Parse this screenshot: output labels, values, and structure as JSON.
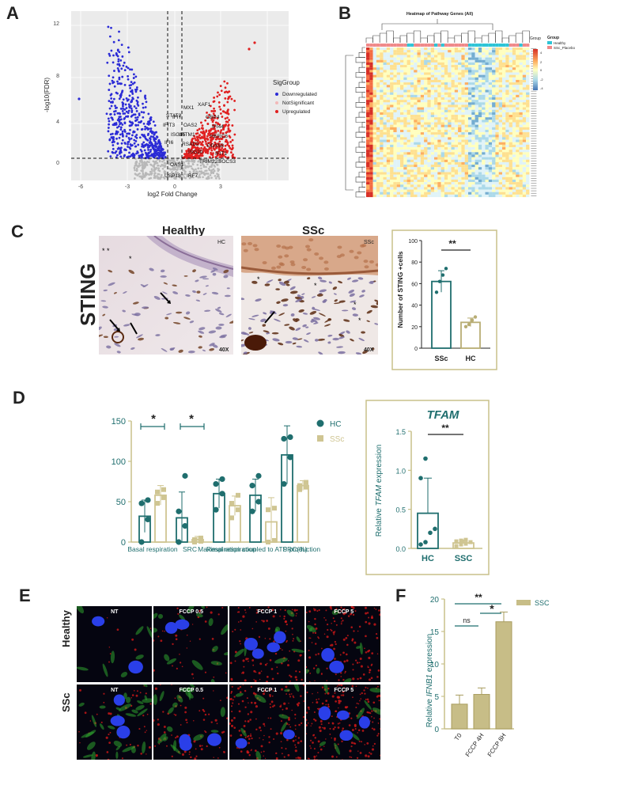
{
  "panels": {
    "A": "A",
    "B": "B",
    "C": "C",
    "D": "D",
    "E": "E",
    "F": "F"
  },
  "volcano": {
    "xlabel": "log2 Fold Change",
    "ylabel": "-log10(FDR)",
    "xticks": [
      "-6",
      "-3",
      "0",
      "3"
    ],
    "yticks": [
      "0",
      "4",
      "8",
      "12"
    ],
    "legend_title": "SigGroup",
    "legend": [
      "Downregulated",
      "NotSignificant",
      "Upregulated"
    ],
    "colors": {
      "down": "#2b2bd6",
      "ns": "#b8b8b8",
      "up": "#e02020"
    },
    "genes": [
      "STAT2",
      "IFIT",
      "IFIT3",
      "ISG15",
      "IFI6",
      "MX1",
      "OAS2",
      "IFITM1",
      "RSAD2",
      "ISG20",
      "OAS1",
      "USP18",
      "IRF7",
      "XAF1",
      "GBP4",
      "IFI44",
      "HERC6",
      "DDX58",
      "IFIT1",
      "SOCS3",
      "TRIM22"
    ]
  },
  "heatmap": {
    "title": "Heatmap of Pathway Genes (All)",
    "group_label": "Group",
    "legend": [
      "Healthy",
      "SSc_Placebo"
    ],
    "legend_colors": [
      "#2ec4d6",
      "#f08a8a"
    ],
    "scale_ticks": [
      "4",
      "2",
      "0",
      "-2",
      "-4"
    ]
  },
  "panel_c": {
    "row_label": "STING",
    "col_healthy": "Healthy",
    "col_ssc": "SSc",
    "tag_hc": "HC",
    "tag_ssc": "SSc",
    "mag": "40X",
    "bar_chart": {
      "ylabel": "Number of STING +cells",
      "yticks": [
        "0",
        "20",
        "40",
        "60",
        "80",
        "100"
      ],
      "sig": "**"
    }
  },
  "panel_d": {
    "left_legend": [
      "HC",
      "SSc"
    ],
    "sig1": "*",
    "sig2": "*",
    "right_title": "TFAM",
    "right_ylabel_pre": "Relative ",
    "right_ylabel_it": "TFAM",
    "right_ylabel_post": " expression",
    "right_sig": "**",
    "right_yticks": [
      "0.0",
      "0.5",
      "1.0",
      "1.5"
    ]
  },
  "panel_e": {
    "row_healthy": "Healthy",
    "row_ssc": "SSc",
    "cols": [
      "NT",
      "FCCP 0.5",
      "FCCP 1",
      "FCCP 5"
    ]
  },
  "panel_f": {
    "ylabel_pre": "Relative ",
    "ylabel_it": "IFNB1",
    "ylabel_post": " expression",
    "legend": "SSC",
    "sig_top": "**",
    "sig_ns": "ns",
    "sig_star": "*",
    "yticks": [
      "0",
      "5",
      "10",
      "15",
      "20"
    ]
  },
  "chart_data": [
    {
      "type": "bar",
      "panel": "C",
      "categories": [
        "SSc",
        "HC"
      ],
      "values": [
        62,
        24
      ],
      "errors": [
        10,
        4
      ],
      "points": [
        [
          52,
          62,
          68,
          74
        ],
        [
          20,
          22,
          26,
          29
        ]
      ],
      "ylabel": "Number of STING +cells",
      "ylim": [
        0,
        100
      ],
      "colors": [
        "#1f6e6e",
        "#b8ad74"
      ]
    },
    {
      "type": "bar",
      "panel": "D-left",
      "categories": [
        "Basal respiration",
        "SRC",
        "Maximal respiration",
        "Respiration coupled to ATP production",
        "SRC(%)"
      ],
      "series": [
        {
          "name": "HC",
          "values": [
            32,
            30,
            60,
            58,
            108
          ],
          "errors": [
            20,
            32,
            18,
            20,
            36
          ],
          "points": [
            [
              0,
              28,
              48,
              52
            ],
            [
              0,
              20,
              38,
              82
            ],
            [
              40,
              60,
              72,
              78
            ],
            [
              38,
              50,
              70,
              82
            ],
            [
              72,
              105,
              128,
              130
            ]
          ]
        },
        {
          "name": "SSc",
          "values": [
            58,
            3,
            45,
            25,
            70
          ],
          "errors": [
            12,
            4,
            12,
            30,
            6
          ],
          "points": [
            [
              48,
              55,
              62,
              65
            ],
            [
              0,
              1,
              3,
              5
            ],
            [
              30,
              40,
              48,
              58
            ],
            [
              0,
              2,
              40,
              42
            ],
            [
              65,
              68,
              70,
              74
            ]
          ]
        }
      ],
      "ylim": [
        0,
        150
      ],
      "yticks": [
        0,
        50,
        100,
        150
      ],
      "colors": [
        "#1f6e6e",
        "#cfc592"
      ]
    },
    {
      "type": "bar",
      "panel": "D-right",
      "categories": [
        "HC",
        "SSC"
      ],
      "values": [
        0.45,
        0.07
      ],
      "errors": [
        0.45,
        0.04
      ],
      "points": [
        [
          0.05,
          0.08,
          0.2,
          0.25,
          0.9,
          1.15
        ],
        [
          0.03,
          0.05,
          0.06,
          0.08,
          0.09,
          0.1,
          0.11
        ]
      ],
      "title": "TFAM",
      "ylabel": "Relative TFAM expression",
      "ylim": [
        0,
        1.5
      ],
      "colors": [
        "#1f6e6e",
        "#cfc592"
      ]
    },
    {
      "type": "bar",
      "panel": "F",
      "categories": [
        "T0",
        "FCCP 4H",
        "FCCP 8H"
      ],
      "values": [
        3.8,
        5.3,
        16.5
      ],
      "errors": [
        1.4,
        1.0,
        1.5
      ],
      "ylabel": "Relative IFNB1 expression",
      "ylim": [
        0,
        20
      ],
      "legend": "SSC",
      "colors": [
        "#c7bd87"
      ]
    }
  ]
}
